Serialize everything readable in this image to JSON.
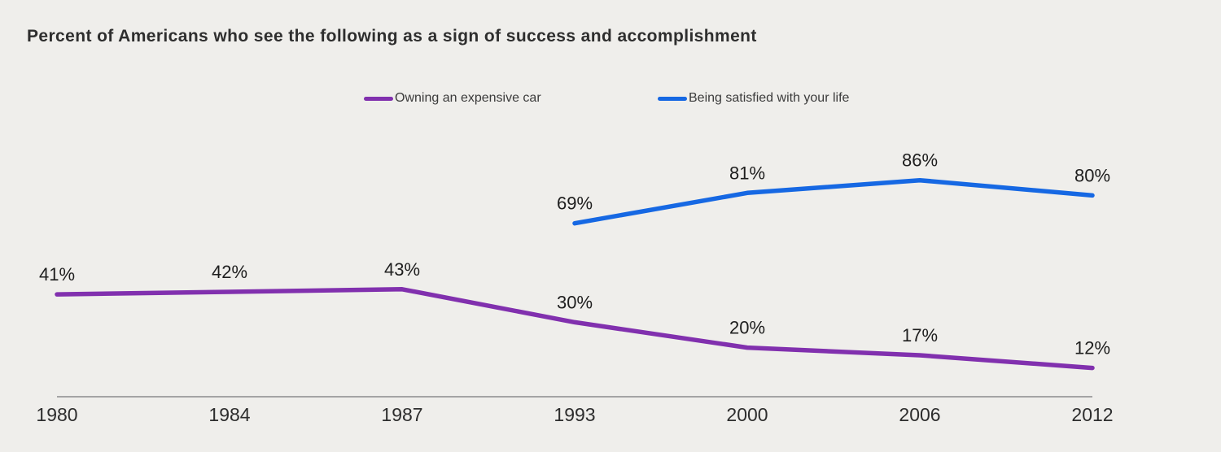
{
  "title": "Percent of Americans who see the following as a sign of success and accomplishment",
  "colors": {
    "background": "#efeeeb",
    "purple": "#8130ae",
    "blue": "#1668e3",
    "axis_line": "#8c8c8c",
    "tick_text": "#2d2d2d",
    "label_text": "#1e1e1e",
    "title_text": "#2e2e2e"
  },
  "legend": {
    "items": [
      {
        "id": "expensive-car",
        "label": "Owning an expensive car"
      },
      {
        "id": "life-satisfaction",
        "label": "Being satisfied with your life"
      }
    ]
  },
  "chart_data": {
    "type": "line",
    "title": "Percent of Americans who see the following as a sign of success and accomplishment",
    "categories": [
      "1980",
      "1984",
      "1987",
      "1993",
      "2000",
      "2006",
      "2012"
    ],
    "series": [
      {
        "id": "expensive-car",
        "name": "Owning an expensive car",
        "color": "#8130ae",
        "values": [
          41,
          42,
          43,
          30,
          20,
          17,
          12
        ]
      },
      {
        "id": "life-satisfaction",
        "name": "Being satisfied with your life",
        "color": "#1668e3",
        "values": [
          null,
          null,
          null,
          69,
          81,
          86,
          80
        ]
      }
    ],
    "value_suffix": "%",
    "data_labels": [
      "41%",
      "42%",
      "43%",
      "30%",
      "20%",
      "17%",
      "12%",
      "69%",
      "81%",
      "86%",
      "80%"
    ],
    "xlabel": "",
    "ylabel": "",
    "ylim": [
      0,
      100
    ],
    "grid": false,
    "y_axis_shown": false,
    "legend_position": "top"
  }
}
